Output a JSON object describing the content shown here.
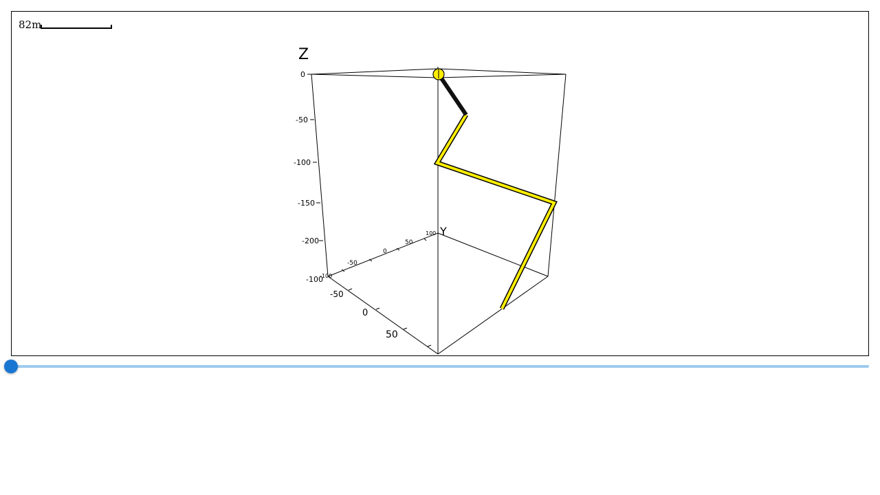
{
  "scale": {
    "label": "82m"
  },
  "axes": {
    "z_label": "Z",
    "y_label": "Y",
    "z_ticks": [
      "0",
      "-50",
      "-100",
      "-150",
      "-200"
    ],
    "y_ticks": [
      "-100",
      "-50",
      "0",
      "50",
      "100"
    ],
    "x_ticks": [
      "-100",
      "-50",
      "0",
      "50"
    ]
  },
  "colors": {
    "path": "#ffee00",
    "path_outline": "#000000",
    "head": "#111111",
    "slider": "#1976d2",
    "slider_track": "#9ecbee"
  },
  "slider": {
    "value": 0
  }
}
